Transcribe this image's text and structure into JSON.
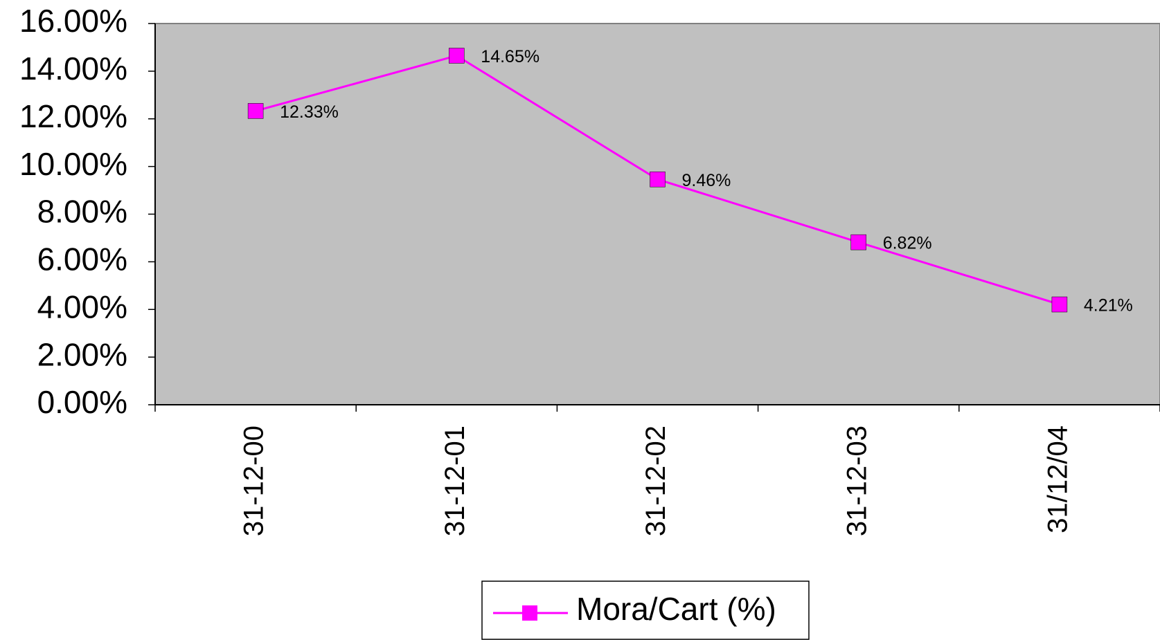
{
  "chart_data": {
    "type": "line",
    "categories": [
      "31-12-00",
      "31-12-01",
      "31-12-02",
      "31-12-03",
      "31/12/04"
    ],
    "series": [
      {
        "name": "Mora/Cart (%)",
        "color": "#ff00ff",
        "values": [
          12.33,
          14.65,
          9.46,
          6.82,
          4.21
        ],
        "value_labels": [
          "12.33%",
          "14.65%",
          "9.46%",
          "6.82%",
          "4.21%"
        ]
      }
    ],
    "ylim": [
      0,
      16
    ],
    "yticks": [
      {
        "value": 0,
        "label": "0.00%"
      },
      {
        "value": 2,
        "label": "2.00%"
      },
      {
        "value": 4,
        "label": "4.00%"
      },
      {
        "value": 6,
        "label": "6.00%"
      },
      {
        "value": 8,
        "label": "8.00%"
      },
      {
        "value": 10,
        "label": "10.00%"
      },
      {
        "value": 12,
        "label": "12.00%"
      },
      {
        "value": 14,
        "label": "14.00%"
      },
      {
        "value": 16,
        "label": "16.00%"
      }
    ],
    "plot_background": "#c0c0c0"
  }
}
